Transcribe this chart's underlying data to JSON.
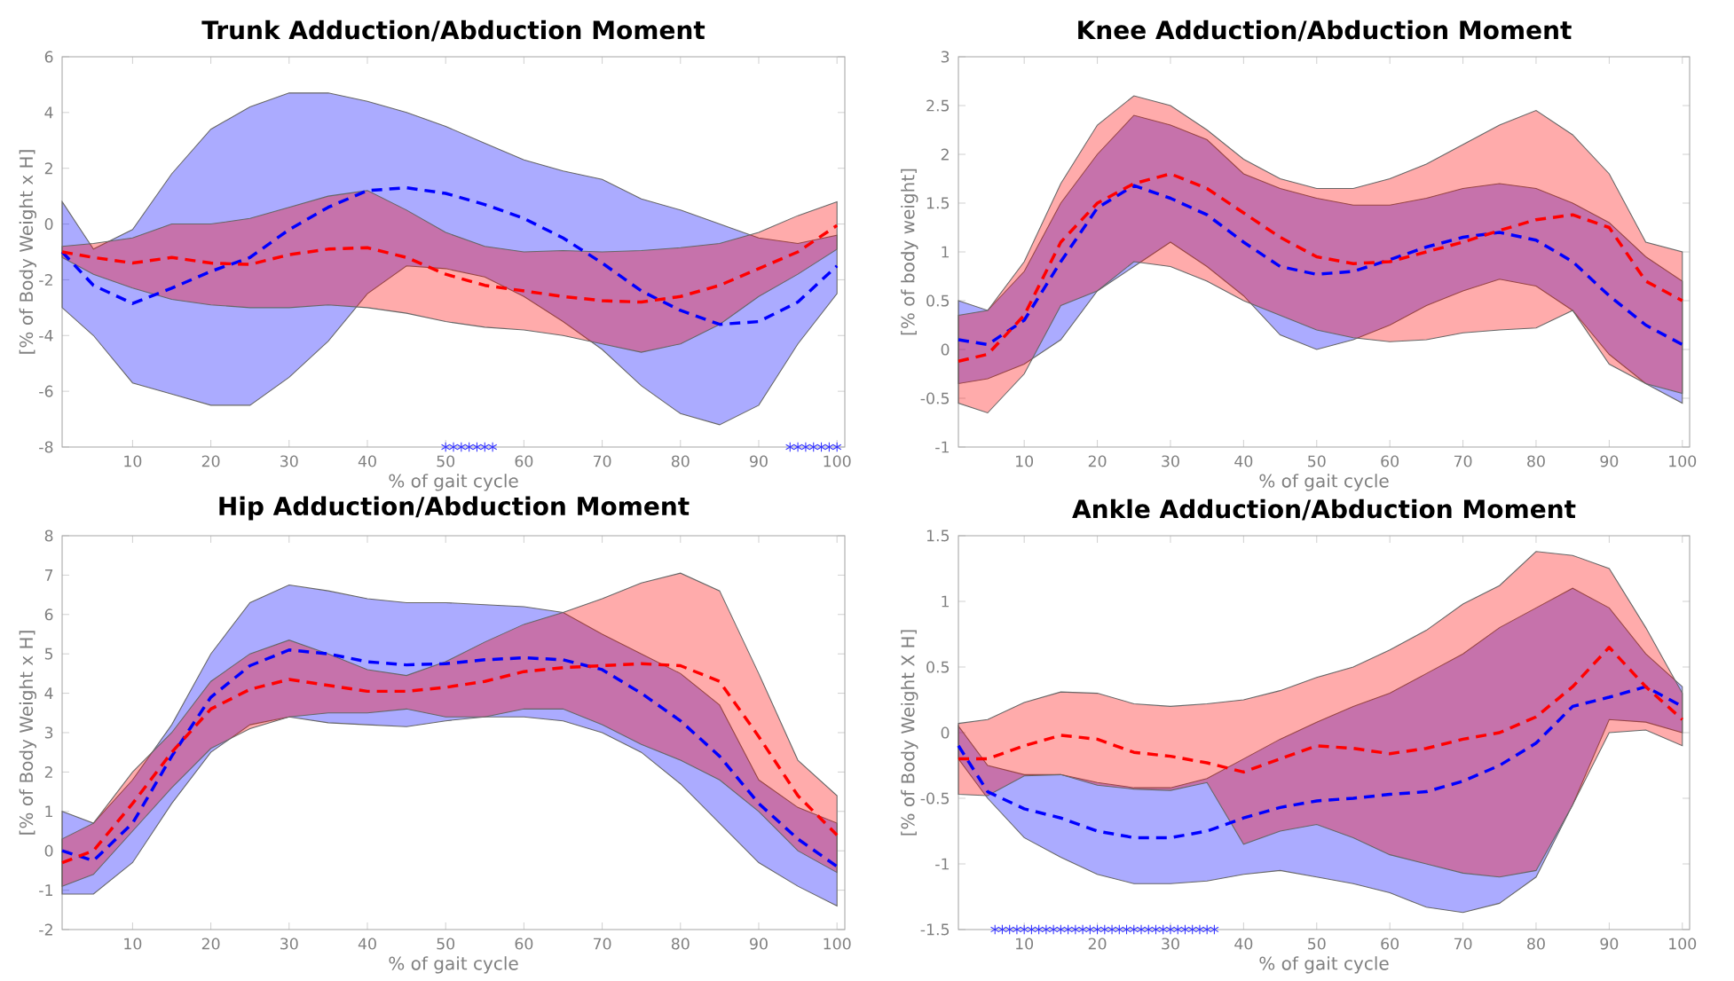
{
  "chart_data": [
    {
      "type": "line",
      "title": "Trunk Adduction/Abduction Moment",
      "xlabel": "% of gait cycle",
      "ylabel": "[% of Body Weight x H]",
      "xlim": [
        1,
        101
      ],
      "xticks": [
        10,
        20,
        30,
        40,
        50,
        60,
        70,
        80,
        90,
        100
      ],
      "ylim": [
        -8,
        6
      ],
      "yticks": [
        -8,
        -6,
        -4,
        -2,
        0,
        2,
        4,
        6
      ],
      "line_style": "dashed",
      "x": [
        1,
        5,
        10,
        15,
        20,
        25,
        30,
        35,
        40,
        45,
        50,
        55,
        60,
        65,
        70,
        75,
        80,
        85,
        90,
        95,
        100
      ],
      "series": [
        {
          "color": "#0000ff",
          "values": [
            -1.0,
            -2.2,
            -2.85,
            -2.3,
            -1.7,
            -1.2,
            -0.2,
            0.6,
            1.2,
            1.3,
            1.1,
            0.7,
            0.2,
            -0.5,
            -1.4,
            -2.4,
            -3.1,
            -3.6,
            -3.5,
            -2.8,
            -1.5
          ],
          "upper": [
            0.8,
            -0.9,
            -0.2,
            1.8,
            3.4,
            4.2,
            4.7,
            4.7,
            4.4,
            4.0,
            3.5,
            2.9,
            2.3,
            1.9,
            1.6,
            0.9,
            0.5,
            0.0,
            -0.5,
            -0.7,
            -0.4
          ],
          "lower": [
            -3.0,
            -4.0,
            -5.7,
            -6.1,
            -6.5,
            -6.5,
            -5.5,
            -4.2,
            -2.5,
            -1.5,
            -1.6,
            -1.9,
            -2.6,
            -3.5,
            -4.5,
            -5.8,
            -6.8,
            -7.2,
            -6.5,
            -4.3,
            -2.5
          ]
        },
        {
          "color": "#ff0000",
          "values": [
            -1.0,
            -1.2,
            -1.4,
            -1.2,
            -1.4,
            -1.45,
            -1.1,
            -0.9,
            -0.85,
            -1.2,
            -1.8,
            -2.2,
            -2.4,
            -2.6,
            -2.75,
            -2.8,
            -2.6,
            -2.2,
            -1.6,
            -1.0,
            -0.05
          ],
          "upper": [
            -0.8,
            -0.7,
            -0.5,
            0.0,
            0.0,
            0.2,
            0.6,
            1.0,
            1.2,
            0.5,
            -0.3,
            -0.8,
            -1.0,
            -0.95,
            -1.0,
            -0.95,
            -0.85,
            -0.7,
            -0.3,
            0.3,
            0.8
          ],
          "lower": [
            -1.2,
            -1.8,
            -2.3,
            -2.7,
            -2.9,
            -3.0,
            -3.0,
            -2.9,
            -3.0,
            -3.2,
            -3.5,
            -3.7,
            -3.8,
            -4.0,
            -4.3,
            -4.6,
            -4.3,
            -3.6,
            -2.6,
            -1.8,
            -0.9
          ]
        },
        {
          "type": "scatter",
          "marker": "cross",
          "color": "#3333ff",
          "x": [
            50,
            51,
            52,
            53,
            54,
            55,
            56,
            94,
            95,
            96,
            97,
            98,
            99,
            100
          ],
          "values": [
            -8,
            -8,
            -8,
            -8,
            -8,
            -8,
            -8,
            -8,
            -8,
            -8,
            -8,
            -8,
            -8,
            -8
          ]
        }
      ]
    },
    {
      "type": "line",
      "title": "Knee Adduction/Abduction Moment",
      "xlabel": "% of gait cycle",
      "ylabel": "[% of body weight]",
      "xlim": [
        1,
        101
      ],
      "xticks": [
        10,
        20,
        30,
        40,
        50,
        60,
        70,
        80,
        90,
        100
      ],
      "ylim": [
        -1,
        3
      ],
      "yticks": [
        -1,
        -0.5,
        0,
        0.5,
        1,
        1.5,
        2,
        2.5,
        3
      ],
      "line_style": "dashed",
      "x": [
        1,
        5,
        10,
        15,
        20,
        25,
        30,
        35,
        40,
        45,
        50,
        55,
        60,
        65,
        70,
        75,
        80,
        85,
        90,
        95,
        100
      ],
      "series": [
        {
          "color": "#0000ff",
          "values": [
            0.1,
            0.05,
            0.3,
            0.9,
            1.45,
            1.68,
            1.55,
            1.38,
            1.1,
            0.85,
            0.77,
            0.8,
            0.92,
            1.05,
            1.15,
            1.2,
            1.12,
            0.9,
            0.55,
            0.25,
            0.05
          ],
          "upper": [
            0.5,
            0.4,
            0.8,
            1.5,
            2.0,
            2.4,
            2.3,
            2.15,
            1.8,
            1.65,
            1.55,
            1.48,
            1.48,
            1.55,
            1.65,
            1.7,
            1.65,
            1.5,
            1.3,
            0.95,
            0.7
          ],
          "lower": [
            -0.35,
            -0.3,
            -0.15,
            0.1,
            0.6,
            0.85,
            1.1,
            0.85,
            0.55,
            0.15,
            0.0,
            0.1,
            0.25,
            0.45,
            0.6,
            0.72,
            0.65,
            0.4,
            -0.05,
            -0.35,
            -0.55
          ]
        },
        {
          "color": "#ff0000",
          "values": [
            -0.12,
            -0.05,
            0.35,
            1.1,
            1.5,
            1.7,
            1.8,
            1.65,
            1.4,
            1.15,
            0.95,
            0.88,
            0.9,
            1.0,
            1.1,
            1.22,
            1.33,
            1.38,
            1.25,
            0.7,
            0.5
          ],
          "upper": [
            0.35,
            0.4,
            0.9,
            1.7,
            2.3,
            2.6,
            2.5,
            2.25,
            1.95,
            1.75,
            1.65,
            1.65,
            1.75,
            1.9,
            2.1,
            2.3,
            2.45,
            2.2,
            1.8,
            1.1,
            1.0
          ],
          "lower": [
            -0.55,
            -0.65,
            -0.25,
            0.45,
            0.6,
            0.9,
            0.85,
            0.7,
            0.5,
            0.35,
            0.2,
            0.12,
            0.08,
            0.1,
            0.17,
            0.2,
            0.22,
            0.4,
            -0.15,
            -0.35,
            -0.45
          ]
        }
      ]
    },
    {
      "type": "line",
      "title": "Hip Adduction/Abduction Moment",
      "xlabel": "% of gait cycle",
      "ylabel": "[% of Body Weight x H]",
      "xlim": [
        1,
        101
      ],
      "xticks": [
        10,
        20,
        30,
        40,
        50,
        60,
        70,
        80,
        90,
        100
      ],
      "ylim": [
        -2,
        8
      ],
      "yticks": [
        -2,
        -1,
        0,
        1,
        2,
        3,
        4,
        5,
        6,
        7,
        8
      ],
      "line_style": "dashed",
      "x": [
        1,
        5,
        10,
        15,
        20,
        25,
        30,
        35,
        40,
        45,
        50,
        55,
        60,
        65,
        70,
        75,
        80,
        85,
        90,
        95,
        100
      ],
      "series": [
        {
          "color": "#0000ff",
          "values": [
            0.0,
            -0.25,
            0.7,
            2.4,
            3.9,
            4.7,
            5.1,
            5.0,
            4.8,
            4.72,
            4.75,
            4.85,
            4.9,
            4.85,
            4.6,
            4.0,
            3.3,
            2.4,
            1.2,
            0.3,
            -0.4
          ],
          "upper": [
            1.0,
            0.7,
            1.8,
            3.2,
            5.0,
            6.3,
            6.75,
            6.6,
            6.4,
            6.3,
            6.3,
            6.25,
            6.2,
            6.05,
            5.5,
            5.0,
            4.5,
            3.7,
            1.8,
            1.1,
            0.7
          ],
          "lower": [
            -1.1,
            -1.1,
            -0.3,
            1.2,
            2.5,
            3.2,
            3.4,
            3.25,
            3.2,
            3.15,
            3.3,
            3.4,
            3.4,
            3.3,
            3.0,
            2.5,
            1.7,
            0.7,
            -0.3,
            -0.9,
            -1.4
          ]
        },
        {
          "color": "#ff0000",
          "values": [
            -0.3,
            0.0,
            1.2,
            2.5,
            3.6,
            4.1,
            4.35,
            4.2,
            4.05,
            4.05,
            4.15,
            4.3,
            4.55,
            4.65,
            4.7,
            4.75,
            4.7,
            4.3,
            2.9,
            1.4,
            0.4
          ],
          "upper": [
            0.3,
            0.7,
            2.0,
            3.0,
            4.3,
            5.0,
            5.35,
            5.0,
            4.6,
            4.45,
            4.8,
            5.3,
            5.75,
            6.05,
            6.4,
            6.8,
            7.05,
            6.6,
            4.5,
            2.3,
            1.4
          ],
          "lower": [
            -0.9,
            -0.6,
            0.5,
            1.6,
            2.6,
            3.1,
            3.4,
            3.5,
            3.5,
            3.6,
            3.4,
            3.4,
            3.6,
            3.6,
            3.2,
            2.7,
            2.3,
            1.8,
            1.0,
            0.0,
            -0.55
          ]
        }
      ]
    },
    {
      "type": "line",
      "title": "Ankle Adduction/Abduction Moment",
      "xlabel": "% of gait cycle",
      "ylabel": "[% of Body Weight X H]",
      "xlim": [
        1,
        101
      ],
      "xticks": [
        10,
        20,
        30,
        40,
        50,
        60,
        70,
        80,
        90,
        100
      ],
      "ylim": [
        -1.5,
        1.5
      ],
      "yticks": [
        -1.5,
        -1,
        -0.5,
        0,
        0.5,
        1,
        1.5
      ],
      "line_style": "dashed",
      "x": [
        1,
        5,
        10,
        15,
        20,
        25,
        30,
        35,
        40,
        45,
        50,
        55,
        60,
        65,
        70,
        75,
        80,
        85,
        90,
        95,
        100
      ],
      "series": [
        {
          "color": "#0000ff",
          "values": [
            -0.1,
            -0.45,
            -0.58,
            -0.65,
            -0.75,
            -0.8,
            -0.8,
            -0.75,
            -0.65,
            -0.57,
            -0.52,
            -0.5,
            -0.47,
            -0.45,
            -0.37,
            -0.25,
            -0.08,
            0.2,
            0.27,
            0.35,
            0.2
          ],
          "upper": [
            0.05,
            -0.25,
            -0.32,
            -0.32,
            -0.38,
            -0.42,
            -0.42,
            -0.35,
            -0.2,
            -0.05,
            0.08,
            0.2,
            0.3,
            0.45,
            0.6,
            0.8,
            0.95,
            1.1,
            0.95,
            0.6,
            0.35
          ],
          "lower": [
            -0.2,
            -0.5,
            -0.8,
            -0.95,
            -1.08,
            -1.15,
            -1.15,
            -1.13,
            -1.08,
            -1.05,
            -1.1,
            -1.15,
            -1.22,
            -1.33,
            -1.37,
            -1.3,
            -1.1,
            -0.55,
            0.1,
            0.08,
            0.0
          ]
        },
        {
          "color": "#ff0000",
          "values": [
            -0.2,
            -0.2,
            -0.1,
            -0.02,
            -0.05,
            -0.15,
            -0.18,
            -0.23,
            -0.3,
            -0.2,
            -0.1,
            -0.12,
            -0.16,
            -0.12,
            -0.05,
            0.0,
            0.12,
            0.35,
            0.65,
            0.35,
            0.1
          ],
          "upper": [
            0.07,
            0.1,
            0.23,
            0.31,
            0.3,
            0.22,
            0.2,
            0.22,
            0.25,
            0.32,
            0.42,
            0.5,
            0.63,
            0.78,
            0.98,
            1.12,
            1.38,
            1.35,
            1.25,
            0.8,
            0.3
          ],
          "lower": [
            -0.47,
            -0.48,
            -0.33,
            -0.32,
            -0.4,
            -0.43,
            -0.44,
            -0.38,
            -0.85,
            -0.75,
            -0.7,
            -0.8,
            -0.93,
            -1.0,
            -1.07,
            -1.1,
            -1.05,
            -0.55,
            0.0,
            0.02,
            -0.1
          ]
        },
        {
          "type": "scatter",
          "marker": "cross",
          "color": "#3333ff",
          "x": [
            6,
            7,
            8,
            9,
            10,
            11,
            12,
            13,
            14,
            15,
            16,
            17,
            18,
            19,
            20,
            21,
            22,
            23,
            24,
            25,
            26,
            27,
            28,
            29,
            30,
            31,
            32,
            33,
            34,
            35,
            36
          ],
          "values": [
            -1.5,
            -1.5,
            -1.5,
            -1.5,
            -1.5,
            -1.5,
            -1.5,
            -1.5,
            -1.5,
            -1.5,
            -1.5,
            -1.5,
            -1.5,
            -1.5,
            -1.5,
            -1.5,
            -1.5,
            -1.5,
            -1.5,
            -1.5,
            -1.5,
            -1.5,
            -1.5,
            -1.5,
            -1.5,
            -1.5,
            -1.5,
            -1.5,
            -1.5,
            -1.5,
            -1.5
          ]
        }
      ]
    }
  ]
}
